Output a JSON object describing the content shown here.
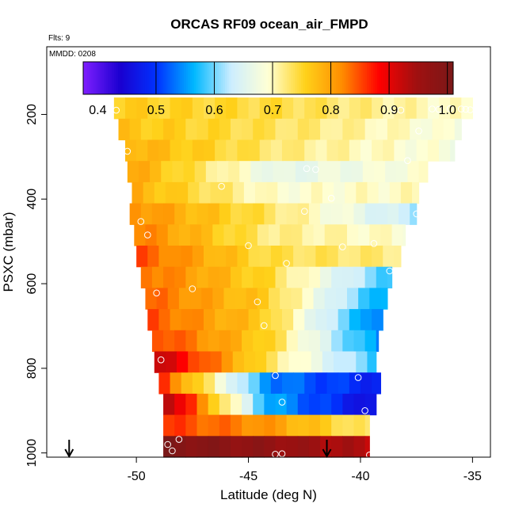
{
  "chart_data": {
    "type": "heatmap",
    "title": "ORCAS RF09 ocean_air_FMPD",
    "annotations": [
      "Flts: 9",
      "MMDD: 0208"
    ],
    "xlabel": "Latitude (deg N)",
    "ylabel": "PSXC (mbar)",
    "xlim": [
      -54,
      -34.2
    ],
    "ylim": [
      1010,
      40
    ],
    "y_inverted": true,
    "x_ticks": [
      -50,
      -45,
      -40,
      -35
    ],
    "y_ticks": [
      200,
      400,
      600,
      800,
      1000
    ],
    "grid": false,
    "colorbar": {
      "range": [
        0.375,
        1.01
      ],
      "ticks": [
        "0.4",
        "0.5",
        "0.6",
        "0.7",
        "0.8",
        "0.9",
        "1.0"
      ],
      "tick_values": [
        0.4,
        0.5,
        0.6,
        0.7,
        0.8,
        0.9,
        1.0
      ],
      "colors": [
        "#7f1fff",
        "#1a00d0",
        "#0033ff",
        "#00b8ff",
        "#cdeeff",
        "#ffffd4",
        "#ffd21a",
        "#ff8c00",
        "#ff0000",
        "#a01010",
        "#7a1818"
      ]
    },
    "bands": [
      {
        "p": 185,
        "x0": -51.0,
        "x1": -35.0,
        "left": 0.76,
        "mid": 0.74,
        "right": 0.69
      },
      {
        "p": 235,
        "x0": -50.8,
        "x1": -35.5,
        "left": 0.77,
        "mid": 0.73,
        "right": 0.68
      },
      {
        "p": 285,
        "x0": -50.5,
        "x1": -35.8,
        "left": 0.79,
        "mid": 0.72,
        "right": 0.68
      },
      {
        "p": 335,
        "x0": -50.4,
        "x1": -37.0,
        "left": 0.8,
        "mid": 0.66,
        "right": 0.69
      },
      {
        "p": 385,
        "x0": -50.2,
        "x1": -37.4,
        "left": 0.79,
        "mid": 0.69,
        "right": 0.7
      },
      {
        "p": 435,
        "x0": -50.3,
        "x1": -37.5,
        "left": 0.82,
        "mid": 0.73,
        "right": 0.62
      },
      {
        "p": 485,
        "x0": -50.1,
        "x1": -38.0,
        "left": 0.83,
        "mid": 0.72,
        "right": 0.69
      },
      {
        "p": 535,
        "x0": -50.0,
        "x1": -38.2,
        "left": 0.85,
        "mid": 0.74,
        "right": 0.72
      },
      {
        "p": 585,
        "x0": -49.8,
        "x1": -38.6,
        "left": 0.84,
        "mid": 0.75,
        "right": 0.58
      },
      {
        "p": 635,
        "x0": -49.6,
        "x1": -38.8,
        "left": 0.84,
        "mid": 0.76,
        "right": 0.55
      },
      {
        "p": 685,
        "x0": -49.5,
        "x1": -39.0,
        "left": 0.85,
        "mid": 0.76,
        "right": 0.52
      },
      {
        "p": 735,
        "x0": -49.3,
        "x1": -39.2,
        "left": 0.86,
        "mid": 0.76,
        "right": 0.54
      },
      {
        "p": 785,
        "x0": -49.2,
        "x1": -39.3,
        "left": 0.93,
        "mid": 0.74,
        "right": 0.58
      },
      {
        "p": 835,
        "x0": -49.0,
        "x1": -39.1,
        "left": 0.87,
        "mid": 0.54,
        "right": 0.48
      },
      {
        "p": 885,
        "x0": -48.8,
        "x1": -39.3,
        "left": 0.96,
        "mid": 0.56,
        "right": 0.45
      },
      {
        "p": 935,
        "x0": -48.8,
        "x1": -39.6,
        "left": 0.86,
        "mid": 0.81,
        "right": 0.72
      },
      {
        "p": 985,
        "x0": -48.8,
        "x1": -39.6,
        "left": 1.0,
        "mid": 0.97,
        "right": 0.93
      }
    ],
    "points": [
      [
        -50.9,
        190
      ],
      [
        -50.4,
        287
      ],
      [
        -49.8,
        453
      ],
      [
        -49.5,
        485
      ],
      [
        -49.1,
        622
      ],
      [
        -48.9,
        780
      ],
      [
        -48.6,
        980
      ],
      [
        -48.4,
        995
      ],
      [
        -48.1,
        968
      ],
      [
        -47.5,
        612
      ],
      [
        -46.2,
        370
      ],
      [
        -45.0,
        510
      ],
      [
        -44.6,
        643
      ],
      [
        -44.3,
        699
      ],
      [
        -43.8,
        817
      ],
      [
        -43.5,
        880
      ],
      [
        -43.3,
        552
      ],
      [
        -43.5,
        1002
      ],
      [
        -43.8,
        1003
      ],
      [
        -42.5,
        429
      ],
      [
        -42.4,
        328
      ],
      [
        -42.0,
        330
      ],
      [
        -41.3,
        398
      ],
      [
        -40.8,
        513
      ],
      [
        -40.1,
        822
      ],
      [
        -39.8,
        900
      ],
      [
        -39.6,
        1005
      ],
      [
        -39.4,
        505
      ],
      [
        -38.7,
        570
      ],
      [
        -38.5,
        188
      ],
      [
        -38.2,
        190
      ],
      [
        -37.9,
        309
      ],
      [
        -37.5,
        435
      ],
      [
        -37.4,
        239
      ],
      [
        -36.8,
        187
      ],
      [
        -36.5,
        188
      ],
      [
        -36.0,
        186
      ],
      [
        -35.5,
        187
      ],
      [
        -35.3,
        188
      ],
      [
        -35.1,
        189
      ]
    ],
    "arrows": [
      -53.0,
      -41.5
    ]
  }
}
